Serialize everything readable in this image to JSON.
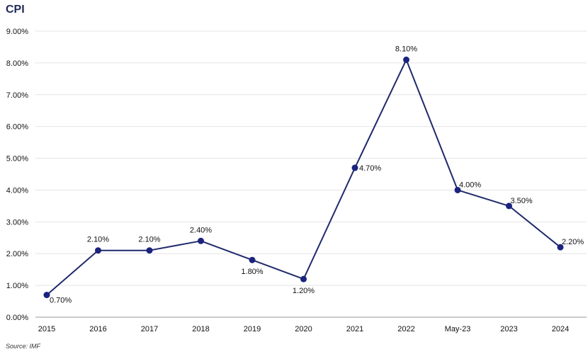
{
  "chart_data": {
    "type": "line",
    "title": "CPI",
    "source": "Source: IMF",
    "categories": [
      "2015",
      "2016",
      "2017",
      "2018",
      "2019",
      "2020",
      "2021",
      "2022",
      "May-23",
      "2023",
      "2024"
    ],
    "series": [
      {
        "values": [
          0.7,
          2.1,
          2.1,
          2.4,
          1.8,
          1.2,
          4.7,
          8.1,
          4.0,
          3.5,
          2.2
        ],
        "labels": [
          "0.70%",
          "2.10%",
          "2.10%",
          "2.40%",
          "1.80%",
          "1.20%",
          "4.70%",
          "8.10%",
          "4.00%",
          "3.50%",
          "2.20%"
        ]
      }
    ],
    "y_ticks": [
      "0.00%",
      "1.00%",
      "2.00%",
      "3.00%",
      "4.00%",
      "5.00%",
      "6.00%",
      "7.00%",
      "8.00%",
      "9.00%"
    ],
    "ylim": [
      0,
      9
    ],
    "grid": true,
    "line_color": "#1f2a6b",
    "marker_color": "#1a237e",
    "grid_color": "#e4e4e4"
  }
}
